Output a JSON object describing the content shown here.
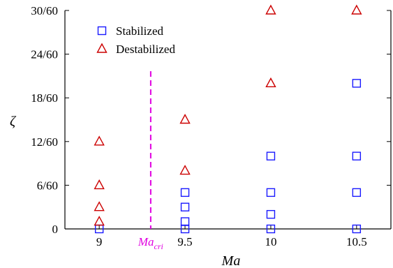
{
  "chart_data": {
    "type": "scatter",
    "xlabel": "Ma",
    "ylabel": "ζ",
    "xlim": [
      8.8,
      10.7
    ],
    "ylim": [
      0,
      0.5
    ],
    "xticks": [
      {
        "value": 9,
        "label": "9"
      },
      {
        "value": 9.5,
        "label": "9.5"
      },
      {
        "value": 10,
        "label": "10"
      },
      {
        "value": 10.5,
        "label": "10.5"
      }
    ],
    "yticks": [
      {
        "value": 0,
        "label": "0"
      },
      {
        "value": 0.1,
        "label": "6/60"
      },
      {
        "value": 0.2,
        "label": "12/60"
      },
      {
        "value": 0.3,
        "label": "18/60"
      },
      {
        "value": 0.4,
        "label": "24/60"
      },
      {
        "value": 0.5,
        "label": "30/60"
      }
    ],
    "grid": false,
    "legend_position": "top-left",
    "series": [
      {
        "name": "Stabilized",
        "marker": "square",
        "color": "#1a1aff",
        "points": [
          {
            "x": 9,
            "y": 0
          },
          {
            "x": 9.5,
            "y": 0
          },
          {
            "x": 9.5,
            "y": 0.0167
          },
          {
            "x": 9.5,
            "y": 0.05
          },
          {
            "x": 9.5,
            "y": 0.0833
          },
          {
            "x": 10,
            "y": 0
          },
          {
            "x": 10,
            "y": 0.0333
          },
          {
            "x": 10,
            "y": 0.0833
          },
          {
            "x": 10,
            "y": 0.1667
          },
          {
            "x": 10.5,
            "y": 0
          },
          {
            "x": 10.5,
            "y": 0.0833
          },
          {
            "x": 10.5,
            "y": 0.1667
          },
          {
            "x": 10.5,
            "y": 0.3333
          }
        ]
      },
      {
        "name": "Destabilized",
        "marker": "triangle",
        "color": "#cc0000",
        "points": [
          {
            "x": 9,
            "y": 0.0167
          },
          {
            "x": 9,
            "y": 0.05
          },
          {
            "x": 9,
            "y": 0.1
          },
          {
            "x": 9,
            "y": 0.2
          },
          {
            "x": 9.5,
            "y": 0.1333
          },
          {
            "x": 9.5,
            "y": 0.25
          },
          {
            "x": 10,
            "y": 0.3333
          },
          {
            "x": 10,
            "y": 0.5
          },
          {
            "x": 10.5,
            "y": 0.5
          }
        ]
      }
    ],
    "critical_line": {
      "x": 9.3,
      "label_main": "Ma",
      "label_sub": "cri",
      "color": "#e000e0"
    }
  }
}
